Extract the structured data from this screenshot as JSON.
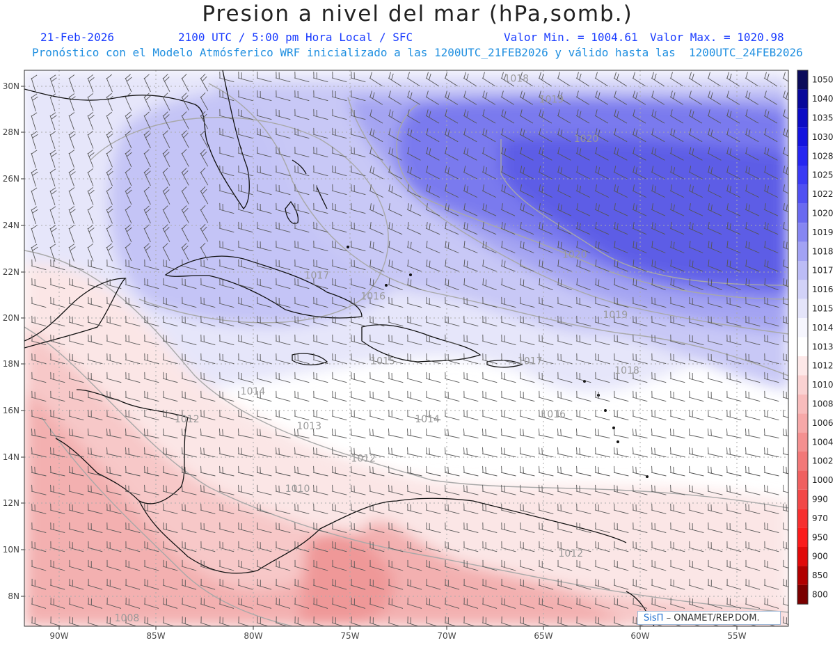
{
  "header": {
    "title": "Presion a nivel del mar (hPa,somb.)",
    "date": "21-Feb-2026",
    "time_text": "2100 UTC / 5:00 pm Hora Local / SFC",
    "min_text": "Valor Min. = 1004.61",
    "max_text": "Valor Max. = 1020.98",
    "model_text": "Pronóstico con el Modelo Atmósferico WRF inicializado a las 1200UTC_21FEB2026 y válido hasta las  1200UTC_24FEB2026"
  },
  "map": {
    "lat_labels": [
      "30N",
      "28N",
      "26N",
      "24N",
      "22N",
      "20N",
      "18N",
      "16N",
      "14N",
      "12N",
      "10N",
      "8N"
    ],
    "lon_labels": [
      "90W",
      "85W",
      "80W",
      "75W",
      "70W",
      "65W",
      "60W",
      "55W"
    ],
    "isobar_labels": [
      {
        "text": "1018",
        "lat": 30.2,
        "lon": -66.4
      },
      {
        "text": "1019",
        "lat": 29.3,
        "lon": -64.6
      },
      {
        "text": "1020",
        "lat": 27.6,
        "lon": -62.8
      },
      {
        "text": "1020",
        "lat": 22.6,
        "lon": -63.4
      },
      {
        "text": "1019",
        "lat": 20.0,
        "lon": -61.3
      },
      {
        "text": "1017",
        "lat": 21.7,
        "lon": -76.7
      },
      {
        "text": "1016",
        "lat": 20.8,
        "lon": -73.8
      },
      {
        "text": "1015",
        "lat": 18.0,
        "lon": -73.3
      },
      {
        "text": "1017",
        "lat": 18.0,
        "lon": -65.7
      },
      {
        "text": "1018",
        "lat": 17.6,
        "lon": -60.7
      },
      {
        "text": "1014",
        "lat": 16.7,
        "lon": -80.0
      },
      {
        "text": "1016",
        "lat": 15.7,
        "lon": -64.5
      },
      {
        "text": "1014",
        "lat": 15.5,
        "lon": -71.0
      },
      {
        "text": "1013",
        "lat": 15.2,
        "lon": -77.1
      },
      {
        "text": "1012",
        "lat": 15.5,
        "lon": -83.4
      },
      {
        "text": "1012",
        "lat": 13.8,
        "lon": -74.3
      },
      {
        "text": "1010",
        "lat": 12.5,
        "lon": -77.7
      },
      {
        "text": "1012",
        "lat": 9.7,
        "lon": -63.6
      },
      {
        "text": "1008",
        "lat": 6.9,
        "lon": -86.5
      }
    ]
  },
  "colorbar": {
    "labels": [
      "1050",
      "1040",
      "1035",
      "1030",
      "1028",
      "1025",
      "1022",
      "1020",
      "1019",
      "1018",
      "1017",
      "1016",
      "1015",
      "1014",
      "1013",
      "1012",
      "1010",
      "1008",
      "1006",
      "1004",
      "1002",
      "1000",
      "990",
      "970",
      "950",
      "900",
      "850",
      "800"
    ],
    "colors": [
      "#0b0b5a",
      "#08089a",
      "#0c0cc4",
      "#1414de",
      "#2626f0",
      "#3a3af4",
      "#5050f2",
      "#6a6af0",
      "#8686f2",
      "#a2a2f4",
      "#bcbcf6",
      "#d2d2f8",
      "#e4e4fa",
      "#f6f6fe",
      "#ffffff",
      "#fde8e8",
      "#fad2d2",
      "#f8bcbc",
      "#f6a8a8",
      "#f49090",
      "#f27878",
      "#f06060",
      "#f24848",
      "#f63030",
      "#fa1c1c",
      "#e00a0a",
      "#b00000",
      "#7a0000"
    ]
  },
  "credit": {
    "brand": "SisΠ",
    "text": "– ONAMET/REP.DOM."
  }
}
